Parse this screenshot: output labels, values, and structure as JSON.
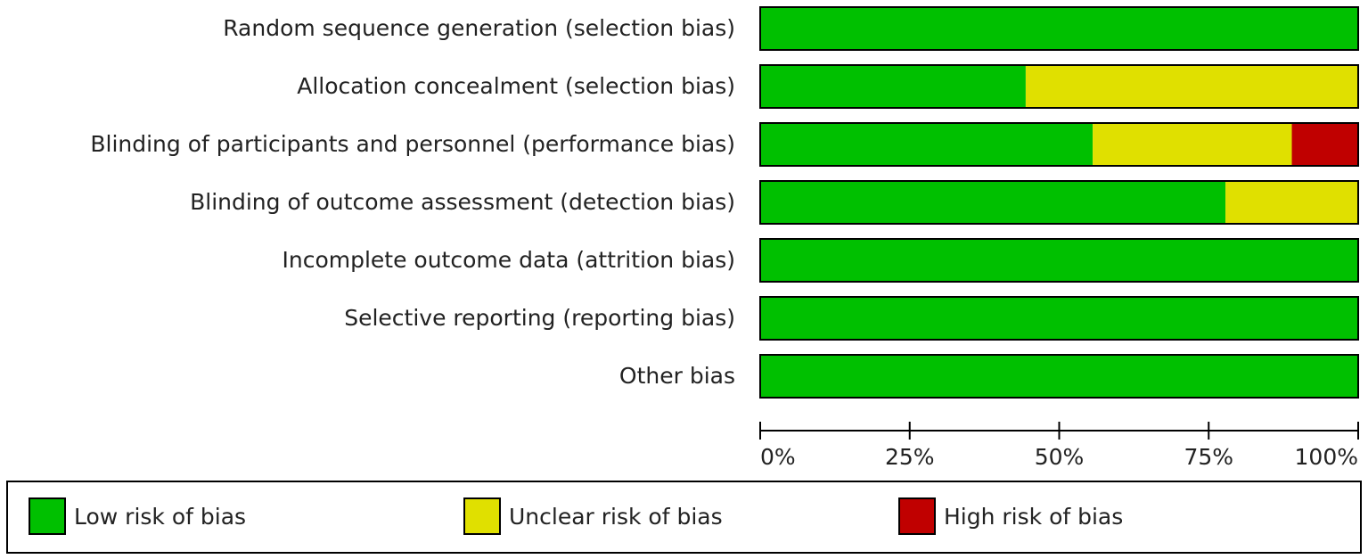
{
  "chart_data": {
    "type": "stacked-bar-horizontal",
    "categories": [
      "Random sequence generation (selection bias)",
      "Allocation concealment (selection bias)",
      "Blinding of participants and personnel (performance bias)",
      "Blinding of outcome assessment (detection bias)",
      "Incomplete outcome data (attrition bias)",
      "Selective reporting (reporting bias)",
      "Other bias"
    ],
    "series": [
      {
        "name": "Low risk of bias",
        "color": "#00c000",
        "values": [
          100,
          44.4,
          55.6,
          77.8,
          100,
          100,
          100
        ]
      },
      {
        "name": "Unclear risk of bias",
        "color": "#e0e000",
        "values": [
          0,
          55.6,
          33.3,
          22.2,
          0,
          0,
          0
        ]
      },
      {
        "name": "High risk of bias",
        "color": "#c00000",
        "values": [
          0,
          0,
          11.1,
          0,
          0,
          0,
          0
        ]
      }
    ],
    "xlim": [
      0,
      100
    ],
    "xticks": [
      {
        "value": 0,
        "label": "0%"
      },
      {
        "value": 25,
        "label": "25%"
      },
      {
        "value": 50,
        "label": "50%"
      },
      {
        "value": 75,
        "label": "75%"
      },
      {
        "value": 100,
        "label": "100%"
      }
    ]
  }
}
